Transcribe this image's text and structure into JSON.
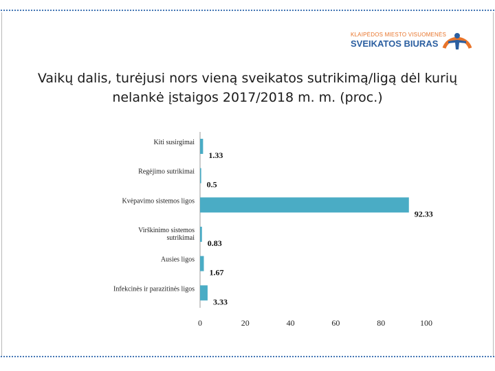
{
  "header": {
    "logo_line1": "KLAIPĖDOS MIESTO VISUOMENĖS",
    "logo_line2": "SVEIKATOS BIURAS"
  },
  "colors": {
    "bar": "#4aacc5",
    "accent_orange": "#e8742a",
    "accent_blue": "#2a5ea0"
  },
  "chart_data": {
    "type": "bar",
    "orientation": "horizontal",
    "title_line1": "Vaikų dalis, turėjusi nors vieną sveikatos sutrikimą/ligą dėl kurių",
    "title_line2": "nelankė įstaigos 2017/2018 m. m. (proc.)",
    "categories": [
      [
        "Kiti susirgimai"
      ],
      [
        "Regėjimo sutrikimai"
      ],
      [
        "Kvėpavimo sistemos ligos"
      ],
      [
        "Virškinimo sistemos",
        "sutrikimai"
      ],
      [
        "Ausies ligos"
      ],
      [
        "Infekcinės ir parazitinės ligos"
      ]
    ],
    "values": [
      1.33,
      0.5,
      92.33,
      0.83,
      1.67,
      3.33
    ],
    "value_labels": [
      "1.33",
      "0.5",
      "92.33",
      "0.83",
      "1.67",
      "3.33"
    ],
    "xlim": [
      0,
      100
    ],
    "xticks": [
      0,
      20,
      40,
      60,
      80,
      100
    ],
    "grid": false,
    "legend": "none"
  }
}
